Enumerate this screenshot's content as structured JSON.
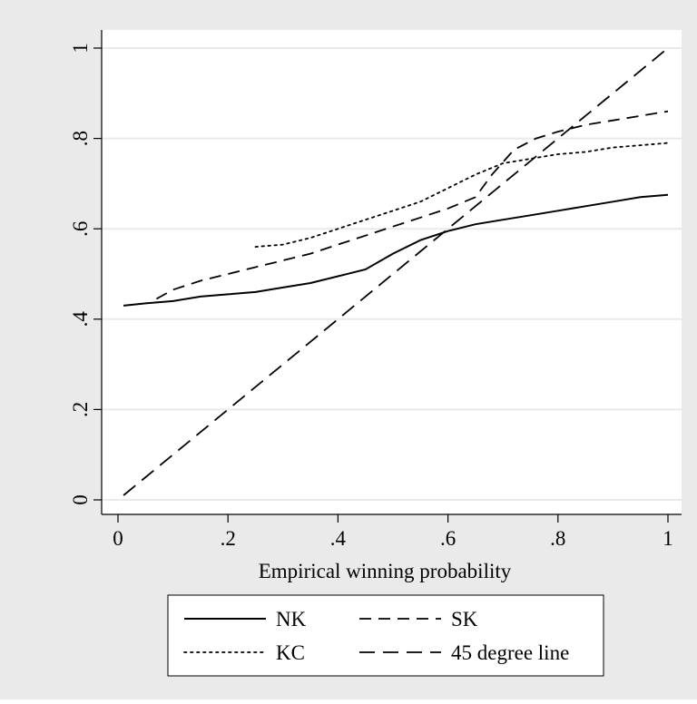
{
  "colors": {
    "outer_background": "#eaeaea",
    "plot_background": "#ffffff",
    "gridline": "#eaeaea",
    "axis": "#000000",
    "series": "#000000"
  },
  "chart_data": {
    "type": "line",
    "title": "",
    "xlabel": "Empirical winning probability",
    "ylabel": "",
    "xlim": [
      0,
      1
    ],
    "ylim": [
      0,
      1
    ],
    "x_ticks": [
      0,
      0.2,
      0.4,
      0.6,
      0.8,
      1
    ],
    "x_tick_labels": [
      "0",
      ".2",
      ".4",
      ".6",
      ".8",
      "1"
    ],
    "y_ticks": [
      0,
      0.2,
      0.4,
      0.6,
      0.8,
      1
    ],
    "y_tick_labels": [
      "0",
      ".2",
      ".4",
      ".6",
      ".8",
      "1"
    ],
    "grid": "horizontal",
    "legend": "bottom",
    "series": [
      {
        "name": "NK",
        "style": "solid",
        "x": [
          0.01,
          0.05,
          0.1,
          0.15,
          0.2,
          0.25,
          0.3,
          0.35,
          0.4,
          0.45,
          0.5,
          0.55,
          0.6,
          0.65,
          0.7,
          0.75,
          0.8,
          0.85,
          0.9,
          0.95,
          1.0
        ],
        "y": [
          0.43,
          0.435,
          0.44,
          0.45,
          0.455,
          0.46,
          0.47,
          0.48,
          0.495,
          0.51,
          0.545,
          0.575,
          0.595,
          0.61,
          0.62,
          0.63,
          0.64,
          0.65,
          0.66,
          0.67,
          0.675
        ]
      },
      {
        "name": "SK",
        "style": "dashed",
        "x": [
          0.07,
          0.1,
          0.15,
          0.2,
          0.25,
          0.3,
          0.35,
          0.4,
          0.45,
          0.5,
          0.55,
          0.6,
          0.65,
          0.68,
          0.72,
          0.76,
          0.8,
          0.85,
          0.9,
          0.95,
          1.0
        ],
        "y": [
          0.445,
          0.465,
          0.485,
          0.5,
          0.515,
          0.53,
          0.545,
          0.565,
          0.585,
          0.605,
          0.625,
          0.645,
          0.67,
          0.72,
          0.775,
          0.8,
          0.815,
          0.83,
          0.84,
          0.85,
          0.86
        ]
      },
      {
        "name": "KC",
        "style": "dotted",
        "x": [
          0.25,
          0.3,
          0.35,
          0.4,
          0.45,
          0.5,
          0.55,
          0.6,
          0.65,
          0.7,
          0.75,
          0.8,
          0.85,
          0.9,
          0.95,
          1.0
        ],
        "y": [
          0.56,
          0.565,
          0.58,
          0.6,
          0.62,
          0.64,
          0.66,
          0.69,
          0.72,
          0.745,
          0.755,
          0.765,
          0.77,
          0.78,
          0.785,
          0.79
        ]
      },
      {
        "name": "45 degree line",
        "style": "longdash",
        "x": [
          0.01,
          1.0
        ],
        "y": [
          0.01,
          1.0
        ]
      }
    ]
  }
}
